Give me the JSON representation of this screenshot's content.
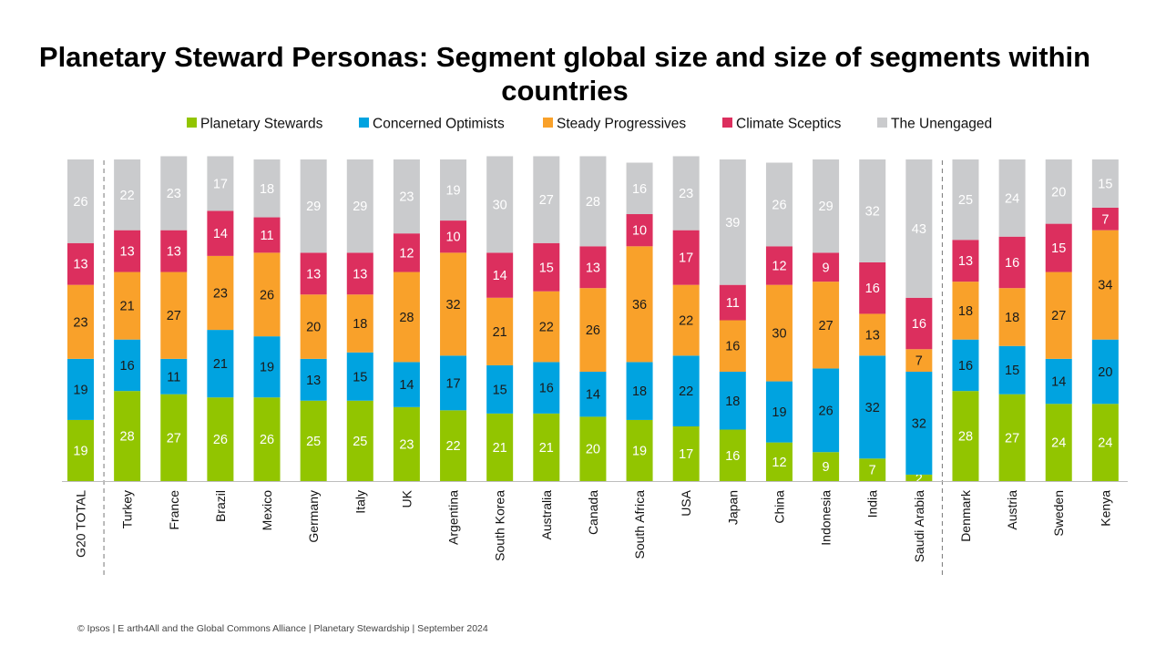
{
  "title": "Planetary Steward Personas: Segment global size and size of segments within countries",
  "footer": "© Ipsos | E arth4All and the Global Commons Alliance | Planetary Stewardship | September 2024",
  "chart_data": {
    "type": "bar",
    "stacked": true,
    "legend_position": "top",
    "grid": false,
    "ylim": [
      0,
      100
    ],
    "categories": [
      "G20 TOTAL",
      "Turkey",
      "France",
      "Brazil",
      "Mexico",
      "Germany",
      "Italy",
      "UK",
      "Argentina",
      "South Korea",
      "Australia",
      "Canada",
      "South Africa",
      "USA",
      "Japan",
      "China",
      "Indonesia",
      "India",
      "Saudi Arabia",
      "Denmark",
      "Austria",
      "Sweden",
      "Kenya"
    ],
    "separators_after": [
      "G20 TOTAL",
      "Saudi Arabia"
    ],
    "series": [
      {
        "name": "Planetary Stewards",
        "color": "#92c500",
        "label_color": "#ffffff",
        "values": [
          19,
          28,
          27,
          26,
          26,
          25,
          25,
          23,
          22,
          21,
          21,
          20,
          19,
          17,
          16,
          12,
          9,
          7,
          2,
          28,
          27,
          24,
          24
        ]
      },
      {
        "name": "Concerned Optimists",
        "color": "#00a3e0",
        "label_color": "#1a1a1a",
        "values": [
          19,
          16,
          11,
          21,
          19,
          13,
          15,
          14,
          17,
          15,
          16,
          14,
          18,
          22,
          18,
          19,
          26,
          32,
          32,
          16,
          15,
          14,
          20
        ]
      },
      {
        "name": "Steady Progressives",
        "color": "#f9a12a",
        "label_color": "#1a1a1a",
        "values": [
          23,
          21,
          27,
          23,
          26,
          20,
          18,
          28,
          32,
          21,
          22,
          26,
          36,
          22,
          16,
          30,
          27,
          13,
          7,
          18,
          18,
          27,
          34
        ]
      },
      {
        "name": "Climate Sceptics",
        "color": "#dc2f5e",
        "label_color": "#ffffff",
        "values": [
          13,
          13,
          13,
          14,
          11,
          13,
          13,
          12,
          10,
          14,
          15,
          13,
          10,
          17,
          11,
          12,
          9,
          16,
          16,
          13,
          16,
          15,
          7
        ]
      },
      {
        "name": "The Unengaged",
        "color": "#cacbcd",
        "label_color": "#ffffff",
        "values": [
          26,
          22,
          23,
          17,
          18,
          29,
          29,
          23,
          19,
          30,
          27,
          28,
          16,
          23,
          39,
          26,
          29,
          32,
          43,
          25,
          24,
          20,
          15
        ]
      }
    ]
  }
}
